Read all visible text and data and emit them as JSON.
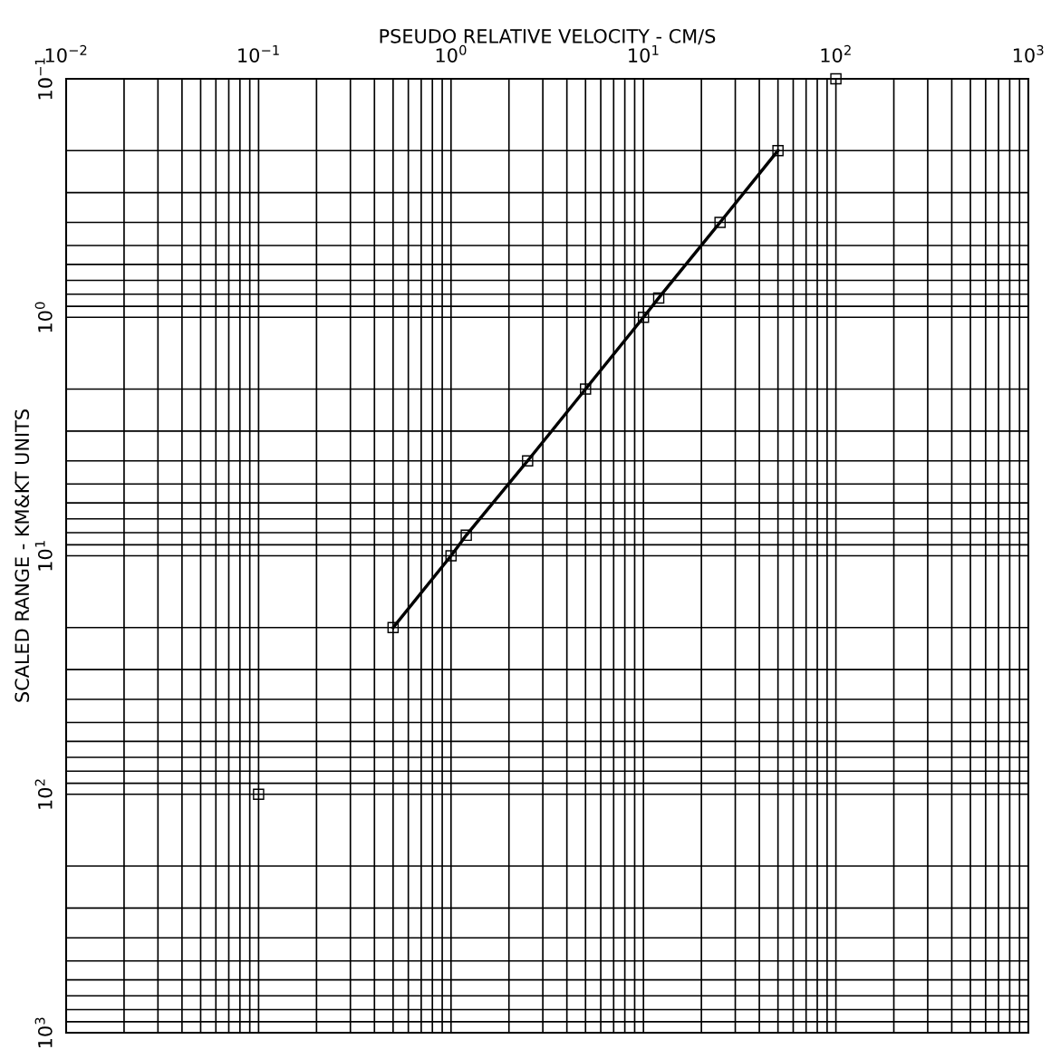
{
  "chart_data": {
    "type": "line",
    "xlabel": "PSEUDO RELATIVE VELOCITY - CM/S",
    "ylabel": "SCALED RANGE - KM&KT UNITS",
    "log": "xy",
    "grid": true,
    "marker": "square",
    "line_style": "solid",
    "xlim": [
      0.01,
      1000
    ],
    "ylim": [
      1000,
      0.1
    ],
    "xticks": [
      {
        "value": 0.01,
        "label": "10$^{−2}$"
      },
      {
        "value": 0.1,
        "label": "10$^{−1}$"
      },
      {
        "value": 1,
        "label": "10$^{0}$"
      },
      {
        "value": 10,
        "label": "10$^{1}$"
      },
      {
        "value": 100,
        "label": "10$^{2}$"
      },
      {
        "value": 1000,
        "label": "10$^{3}$"
      }
    ],
    "yticks": [
      {
        "value": 0.1,
        "label": "10$^{−1}$"
      },
      {
        "value": 1,
        "label": "10$^{0}$"
      },
      {
        "value": 10,
        "label": "10$^{1}$"
      },
      {
        "value": 100,
        "label": "10$^{2}$"
      },
      {
        "value": 1000,
        "label": "10$^{3}$"
      }
    ],
    "series": [
      {
        "color": "#000000",
        "x": [
          0.5,
          1.0,
          1.2,
          2.5,
          5,
          10,
          12,
          25,
          50
        ],
        "values": [
          20,
          10,
          8.2,
          4,
          2,
          1,
          0.83,
          0.4,
          0.2
        ]
      },
      {
        "type": "scatter",
        "color": "#000000",
        "x": [
          100,
          0.1
        ],
        "values": [
          0.1,
          100
        ]
      }
    ]
  }
}
